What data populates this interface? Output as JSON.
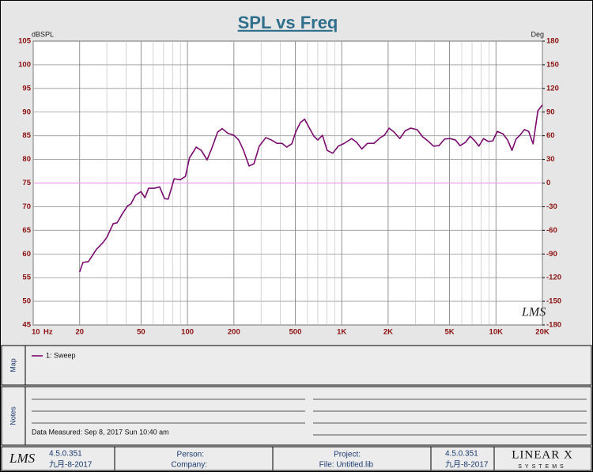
{
  "chart_data": {
    "type": "line",
    "title": "SPL vs Freq",
    "y_label": "dBSPL",
    "y2_label": "Deg",
    "x_unit": "Hz",
    "x": [
      20,
      21,
      22.8,
      25.7,
      28.3,
      30,
      33,
      35,
      38,
      41,
      43,
      46,
      50,
      53,
      56,
      61,
      66,
      71,
      75,
      82,
      90,
      97,
      103,
      114,
      123,
      134,
      144,
      157,
      168,
      183,
      200,
      215,
      231,
      251,
      270,
      292,
      322,
      350,
      380,
      410,
      440,
      475,
      505,
      540,
      575,
      618,
      660,
      700,
      750,
      805,
      874,
      950,
      1040,
      1160,
      1250,
      1350,
      1470,
      1620,
      1780,
      1890,
      2030,
      2180,
      2380,
      2590,
      2800,
      3080,
      3340,
      3620,
      3940,
      4270,
      4640,
      5030,
      5460,
      5850,
      6340,
      6800,
      7300,
      7750,
      8300,
      8900,
      9530,
      10200,
      11100,
      11900,
      12700,
      13500,
      14300,
      15300,
      16300,
      17400,
      18700,
      20000
    ],
    "series": [
      {
        "name": "1: Sweep",
        "color": "#7a0a6e",
        "values": [
          56.2,
          58.2,
          58.4,
          61.0,
          62.4,
          63.5,
          66.4,
          66.6,
          68.6,
          70.2,
          70.6,
          72.4,
          73.2,
          71.9,
          73.9,
          73.9,
          74.2,
          71.7,
          71.6,
          75.9,
          75.7,
          76.4,
          80.3,
          82.6,
          81.9,
          79.9,
          82.4,
          85.8,
          86.5,
          85.5,
          85.1,
          84.1,
          81.9,
          78.6,
          79.1,
          82.8,
          84.6,
          84.1,
          83.4,
          83.4,
          82.6,
          83.3,
          85.9,
          87.8,
          88.5,
          86.6,
          84.9,
          84.1,
          85.1,
          81.9,
          81.3,
          82.8,
          83.4,
          84.4,
          83.6,
          82.2,
          83.4,
          83.4,
          84.6,
          85.1,
          86.6,
          85.8,
          84.4,
          86.1,
          86.6,
          86.3,
          84.8,
          83.9,
          82.8,
          82.9,
          84.3,
          84.4,
          84.1,
          82.9,
          83.6,
          84.9,
          83.9,
          82.8,
          84.4,
          83.8,
          83.9,
          85.9,
          85.4,
          84.1,
          81.9,
          84.3,
          85.1,
          86.3,
          85.9,
          83.3,
          90.3,
          91.5
        ]
      }
    ],
    "x_log": true,
    "xlim": [
      10,
      20000
    ],
    "xticks": [
      10,
      20,
      50,
      100,
      200,
      500,
      {
        "value": 1000,
        "label": "1K"
      },
      {
        "value": 2000,
        "label": "2K"
      },
      {
        "value": 5000,
        "label": "5K"
      },
      {
        "value": 10000,
        "label": "10K"
      },
      {
        "value": 20000,
        "label": "20K"
      }
    ],
    "x_minor_ticks": [
      30,
      40,
      60,
      70,
      80,
      90,
      300,
      400,
      600,
      700,
      800,
      900,
      3000,
      4000,
      6000,
      7000,
      8000,
      9000
    ],
    "ylim": [
      45,
      105
    ],
    "yticks": [
      45,
      50,
      55,
      60,
      65,
      70,
      75,
      80,
      85,
      90,
      95,
      100,
      105
    ],
    "y2lim": [
      -180,
      180
    ],
    "y2ticks": [
      -180,
      -150,
      -120,
      -90,
      -60,
      -30,
      0,
      30,
      60,
      90,
      120,
      150,
      180
    ],
    "zero_line": {
      "axis": "y2",
      "value": 0,
      "color": "#e8a0e8"
    },
    "grid": true,
    "watermark": "LMS"
  },
  "map_panel": {
    "label": "Map"
  },
  "notes_panel": {
    "label": "Notes",
    "data_measured": "Data Measured: Sep 8, 2017 Sun 10:40 am"
  },
  "footer": {
    "logo": "LMS",
    "version_left": "4.5.0.351",
    "date_left": "九月-8-2017",
    "person": "Person:",
    "company": "Company:",
    "project": "Project:",
    "file": "File: Untitled.lib",
    "version_right": "4.5.0.351",
    "date_right": "九月-8-2017",
    "brand": "LINEAR X",
    "brand_sub": "SYSTEMS"
  }
}
